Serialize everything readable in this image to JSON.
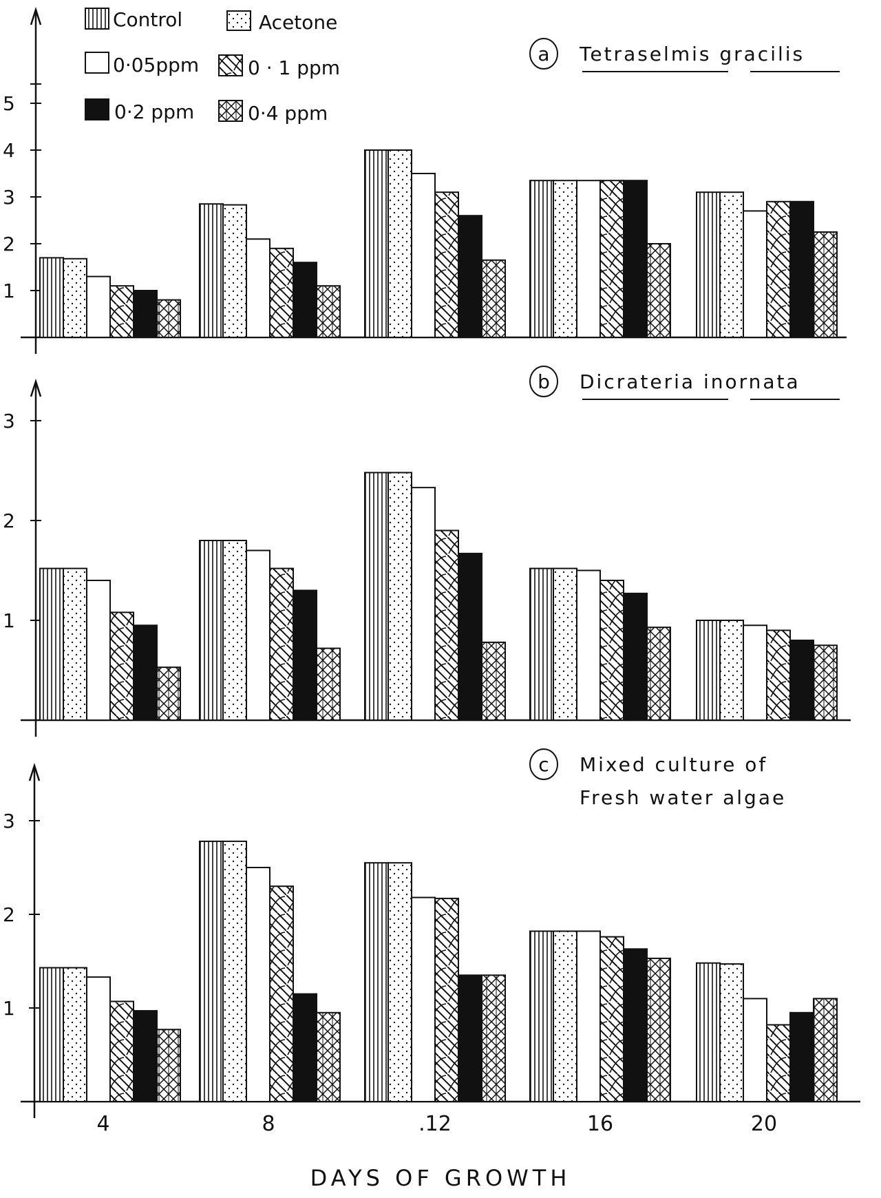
{
  "legend": {
    "items": [
      {
        "label": "Control",
        "pattern": "vlines"
      },
      {
        "label": "Acetone",
        "pattern": "dots"
      },
      {
        "label": "0·05ppm",
        "pattern": "white"
      },
      {
        "label": "0 · 1 ppm",
        "pattern": "diag"
      },
      {
        "label": "0·2 ppm",
        "pattern": "black"
      },
      {
        "label": "0·4 ppm",
        "pattern": "cross"
      }
    ]
  },
  "xlabel": "DAYS  OF  GROWTH",
  "colors": {
    "ink": "#111111",
    "paper": "#ffffff"
  },
  "chart_data": [
    {
      "type": "bar",
      "panel_letter": "a",
      "title_lines": [
        "Tetraselmis gracilis"
      ],
      "categories": [
        "4",
        "8",
        ".12",
        "16",
        "20"
      ],
      "yticks": [
        "1",
        "2",
        "3",
        "4",
        "5"
      ],
      "ylim": [
        0,
        6
      ],
      "series": [
        {
          "name": "Control",
          "values": [
            1.7,
            2.85,
            4.0,
            3.35,
            3.1
          ]
        },
        {
          "name": "Acetone",
          "values": [
            1.68,
            2.83,
            4.0,
            3.35,
            3.1
          ]
        },
        {
          "name": "0·05ppm",
          "values": [
            1.3,
            2.1,
            3.5,
            3.35,
            2.7
          ]
        },
        {
          "name": "0 · 1 ppm",
          "values": [
            1.1,
            1.9,
            3.1,
            3.35,
            2.9
          ]
        },
        {
          "name": "0·2 ppm",
          "values": [
            1.0,
            1.6,
            2.6,
            3.35,
            2.9
          ]
        },
        {
          "name": "0·4 ppm",
          "values": [
            0.8,
            1.1,
            1.65,
            2.0,
            2.25
          ]
        }
      ]
    },
    {
      "type": "bar",
      "panel_letter": "b",
      "title_lines": [
        "Dicrateria inornata"
      ],
      "categories": [
        "4",
        "8",
        ".12",
        "16",
        "20"
      ],
      "yticks": [
        "1",
        "2",
        "3"
      ],
      "ylim": [
        0,
        3.4
      ],
      "series": [
        {
          "name": "Control",
          "values": [
            1.52,
            1.8,
            2.48,
            1.52,
            1.0
          ]
        },
        {
          "name": "Acetone",
          "values": [
            1.52,
            1.8,
            2.48,
            1.52,
            1.0
          ]
        },
        {
          "name": "0·05ppm",
          "values": [
            1.4,
            1.7,
            2.33,
            1.5,
            0.95
          ]
        },
        {
          "name": "0 · 1 ppm",
          "values": [
            1.08,
            1.52,
            1.9,
            1.4,
            0.9
          ]
        },
        {
          "name": "0·2 ppm",
          "values": [
            0.95,
            1.3,
            1.67,
            1.27,
            0.8
          ]
        },
        {
          "name": "0·4 ppm",
          "values": [
            0.53,
            0.72,
            0.78,
            0.93,
            0.75
          ]
        }
      ]
    },
    {
      "type": "bar",
      "panel_letter": "c",
      "title_lines": [
        "Mixed  culture  of",
        "Fresh  water  algae"
      ],
      "categories": [
        "4",
        "8",
        ".12",
        "16",
        "20"
      ],
      "yticks": [
        "1",
        "2",
        "3"
      ],
      "ylim": [
        0,
        3.5
      ],
      "series": [
        {
          "name": "Control",
          "values": [
            1.43,
            2.78,
            2.55,
            1.82,
            1.48
          ]
        },
        {
          "name": "Acetone",
          "values": [
            1.43,
            2.78,
            2.55,
            1.82,
            1.47
          ]
        },
        {
          "name": "0·05ppm",
          "values": [
            1.33,
            2.5,
            2.18,
            1.82,
            1.1
          ]
        },
        {
          "name": "0 · 1 ppm",
          "values": [
            1.07,
            2.3,
            2.17,
            1.76,
            0.82
          ]
        },
        {
          "name": "0·2 ppm",
          "values": [
            0.97,
            1.15,
            1.35,
            1.63,
            0.95
          ]
        },
        {
          "name": "0·4 ppm",
          "values": [
            0.77,
            0.95,
            1.35,
            1.53,
            1.1
          ]
        }
      ]
    }
  ]
}
